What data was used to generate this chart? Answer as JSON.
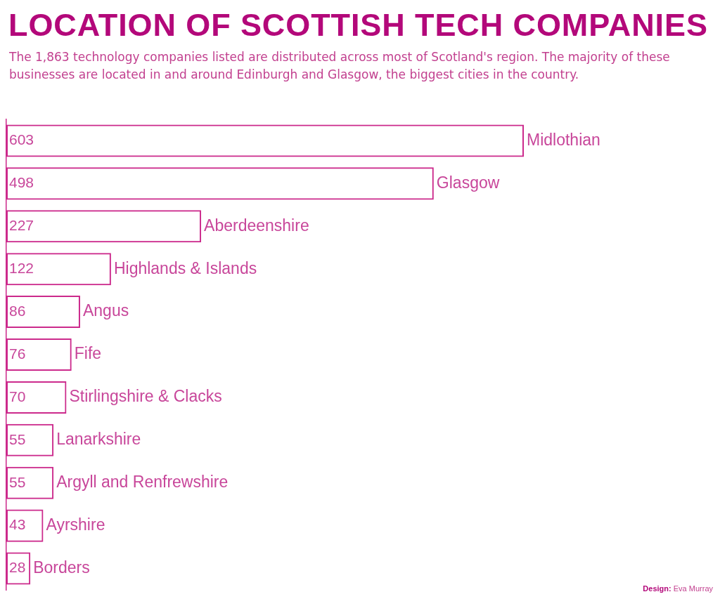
{
  "chart_data": {
    "type": "bar",
    "orientation": "horizontal",
    "title": "LOCATION OF SCOTTISH TECH COMPANIES",
    "subtitle": "The 1,863 technology companies listed are distributed across most of Scotland's region. The majority of these businesses are located in and around Edinburgh and Glasgow, the biggest cities in the country.",
    "categories": [
      "Midlothian",
      "Glasgow",
      "Aberdeenshire",
      "Highlands & Islands",
      "Angus",
      "Fife",
      "Stirlingshire & Clacks",
      "Lanarkshire",
      "Argyll and Renfrewshire",
      "Ayrshire",
      "Borders"
    ],
    "values": [
      603,
      498,
      227,
      122,
      86,
      76,
      70,
      55,
      55,
      43,
      28
    ],
    "color": "#cc2a8c",
    "data_labels": true,
    "tick_labels": "y",
    "annotations": [
      "Design: Eva Murray"
    ]
  }
}
